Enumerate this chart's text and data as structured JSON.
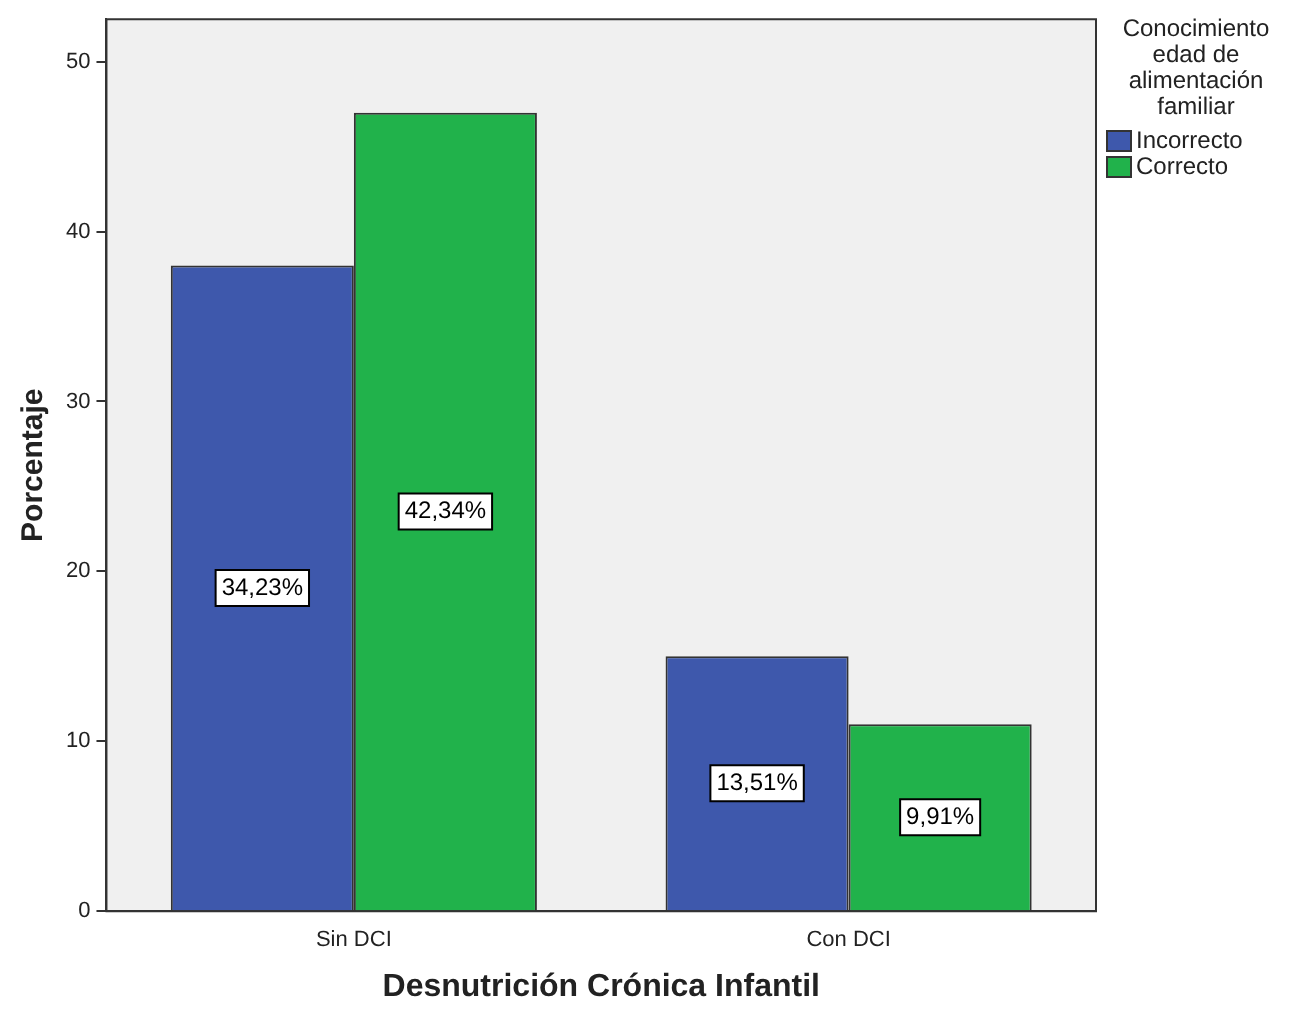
{
  "chart_data": {
    "type": "bar",
    "xlabel": "Desnutrición Crónica Infantil",
    "ylabel": "Porcentaje",
    "legend_title": "Conocimiento edad de alimentación familiar",
    "legend": "top right",
    "categories": [
      "Sin DCI",
      "Con DCI"
    ],
    "ylim": [
      0,
      52.5
    ],
    "yticks": [
      0,
      10,
      20,
      30,
      40,
      50
    ],
    "grid": false,
    "series": [
      {
        "name": "Incorrecto",
        "color": "#3e58ac",
        "values": [
          38,
          15
        ]
      },
      {
        "name": "Correcto",
        "color": "#21b24b",
        "values": [
          47,
          11
        ]
      }
    ],
    "annotations": [
      "34,23%",
      "42,34%",
      "13,51%",
      "9,91%"
    ]
  }
}
